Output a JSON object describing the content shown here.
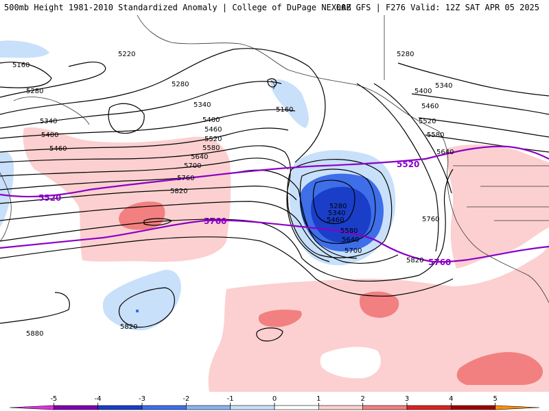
{
  "header": {
    "left": "500mb Height 1981-2010 Standardized Anomaly | College of DuPage NEXLAB",
    "right": "00Z GFS | F276 Valid: 12Z SAT APR 05 2025"
  },
  "height_labels": [
    "5160",
    "5220",
    "5280",
    "5280",
    "5340",
    "5400",
    "5460",
    "5520",
    "5580",
    "5640",
    "5700",
    "5760",
    "5820",
    "5160",
    "5280",
    "5340",
    "5400",
    "5460",
    "5520",
    "5580",
    "5640",
    "5760",
    "5820",
    "5280",
    "5340",
    "5460",
    "5580",
    "5640",
    "5700",
    "5820",
    "5880",
    "5400",
    "5460",
    "5340"
  ],
  "purple_labels": [
    "5520",
    "5520",
    "5760",
    "5760"
  ],
  "colorbar": {
    "ticks": [
      "-5",
      "-4",
      "-3",
      "-2",
      "-1",
      "0",
      "1",
      "2",
      "3",
      "4",
      "5"
    ],
    "colors": [
      "#e030e0",
      "#8000b0",
      "#1a3ec8",
      "#3e6ee8",
      "#8ab4f0",
      "#c8e0fa",
      "#ffffff",
      "#fcd0d0",
      "#f28080",
      "#e02020",
      "#a00000",
      "#ff9000"
    ]
  },
  "colors": {
    "purple": "#8a00c8",
    "neg1": "#c8e0fa",
    "neg2": "#8ab4f0",
    "neg3": "#3e6ee8",
    "neg4": "#1a3ec8",
    "pos1": "#fcd0d0",
    "pos2": "#f28080",
    "pos3": "#ffa040"
  }
}
